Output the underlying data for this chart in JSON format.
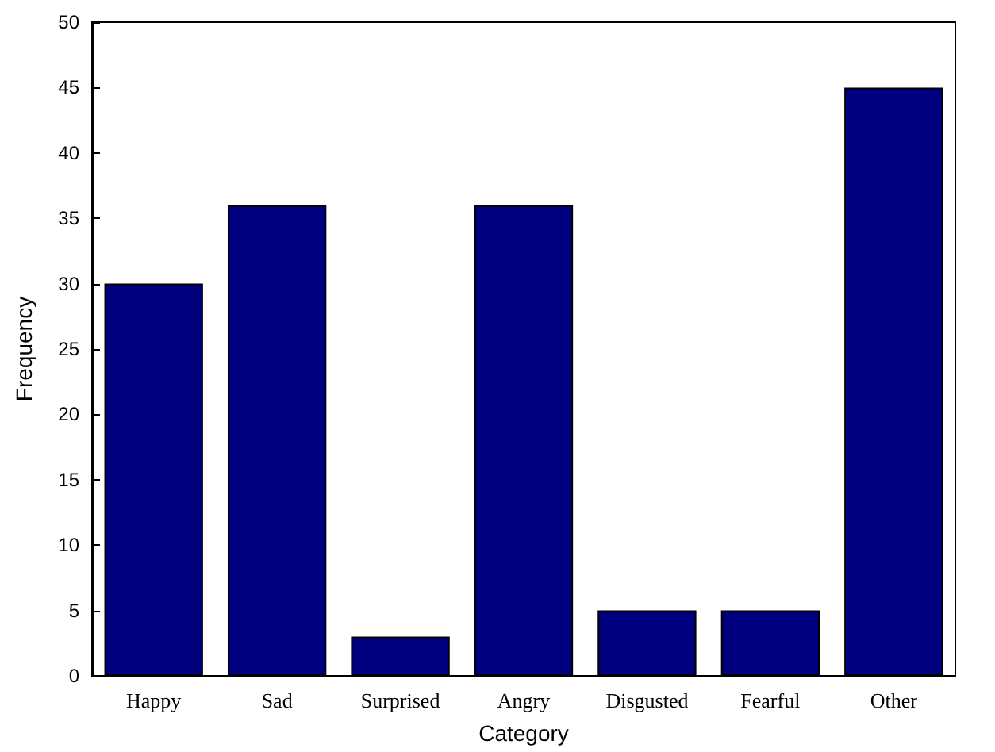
{
  "chart_data": {
    "type": "bar",
    "xlabel": "Category",
    "ylabel": "Frequency",
    "categories": [
      "Happy",
      "Sad",
      "Surprised",
      "Angry",
      "Disgusted",
      "Fearful",
      "Other"
    ],
    "values": [
      30,
      36,
      3,
      36,
      5,
      5,
      45
    ],
    "color": "#00007f",
    "ylim": [
      0,
      50
    ],
    "yticks": [
      0,
      5,
      10,
      15,
      20,
      25,
      30,
      35,
      40,
      45,
      50
    ],
    "grid": false
  }
}
